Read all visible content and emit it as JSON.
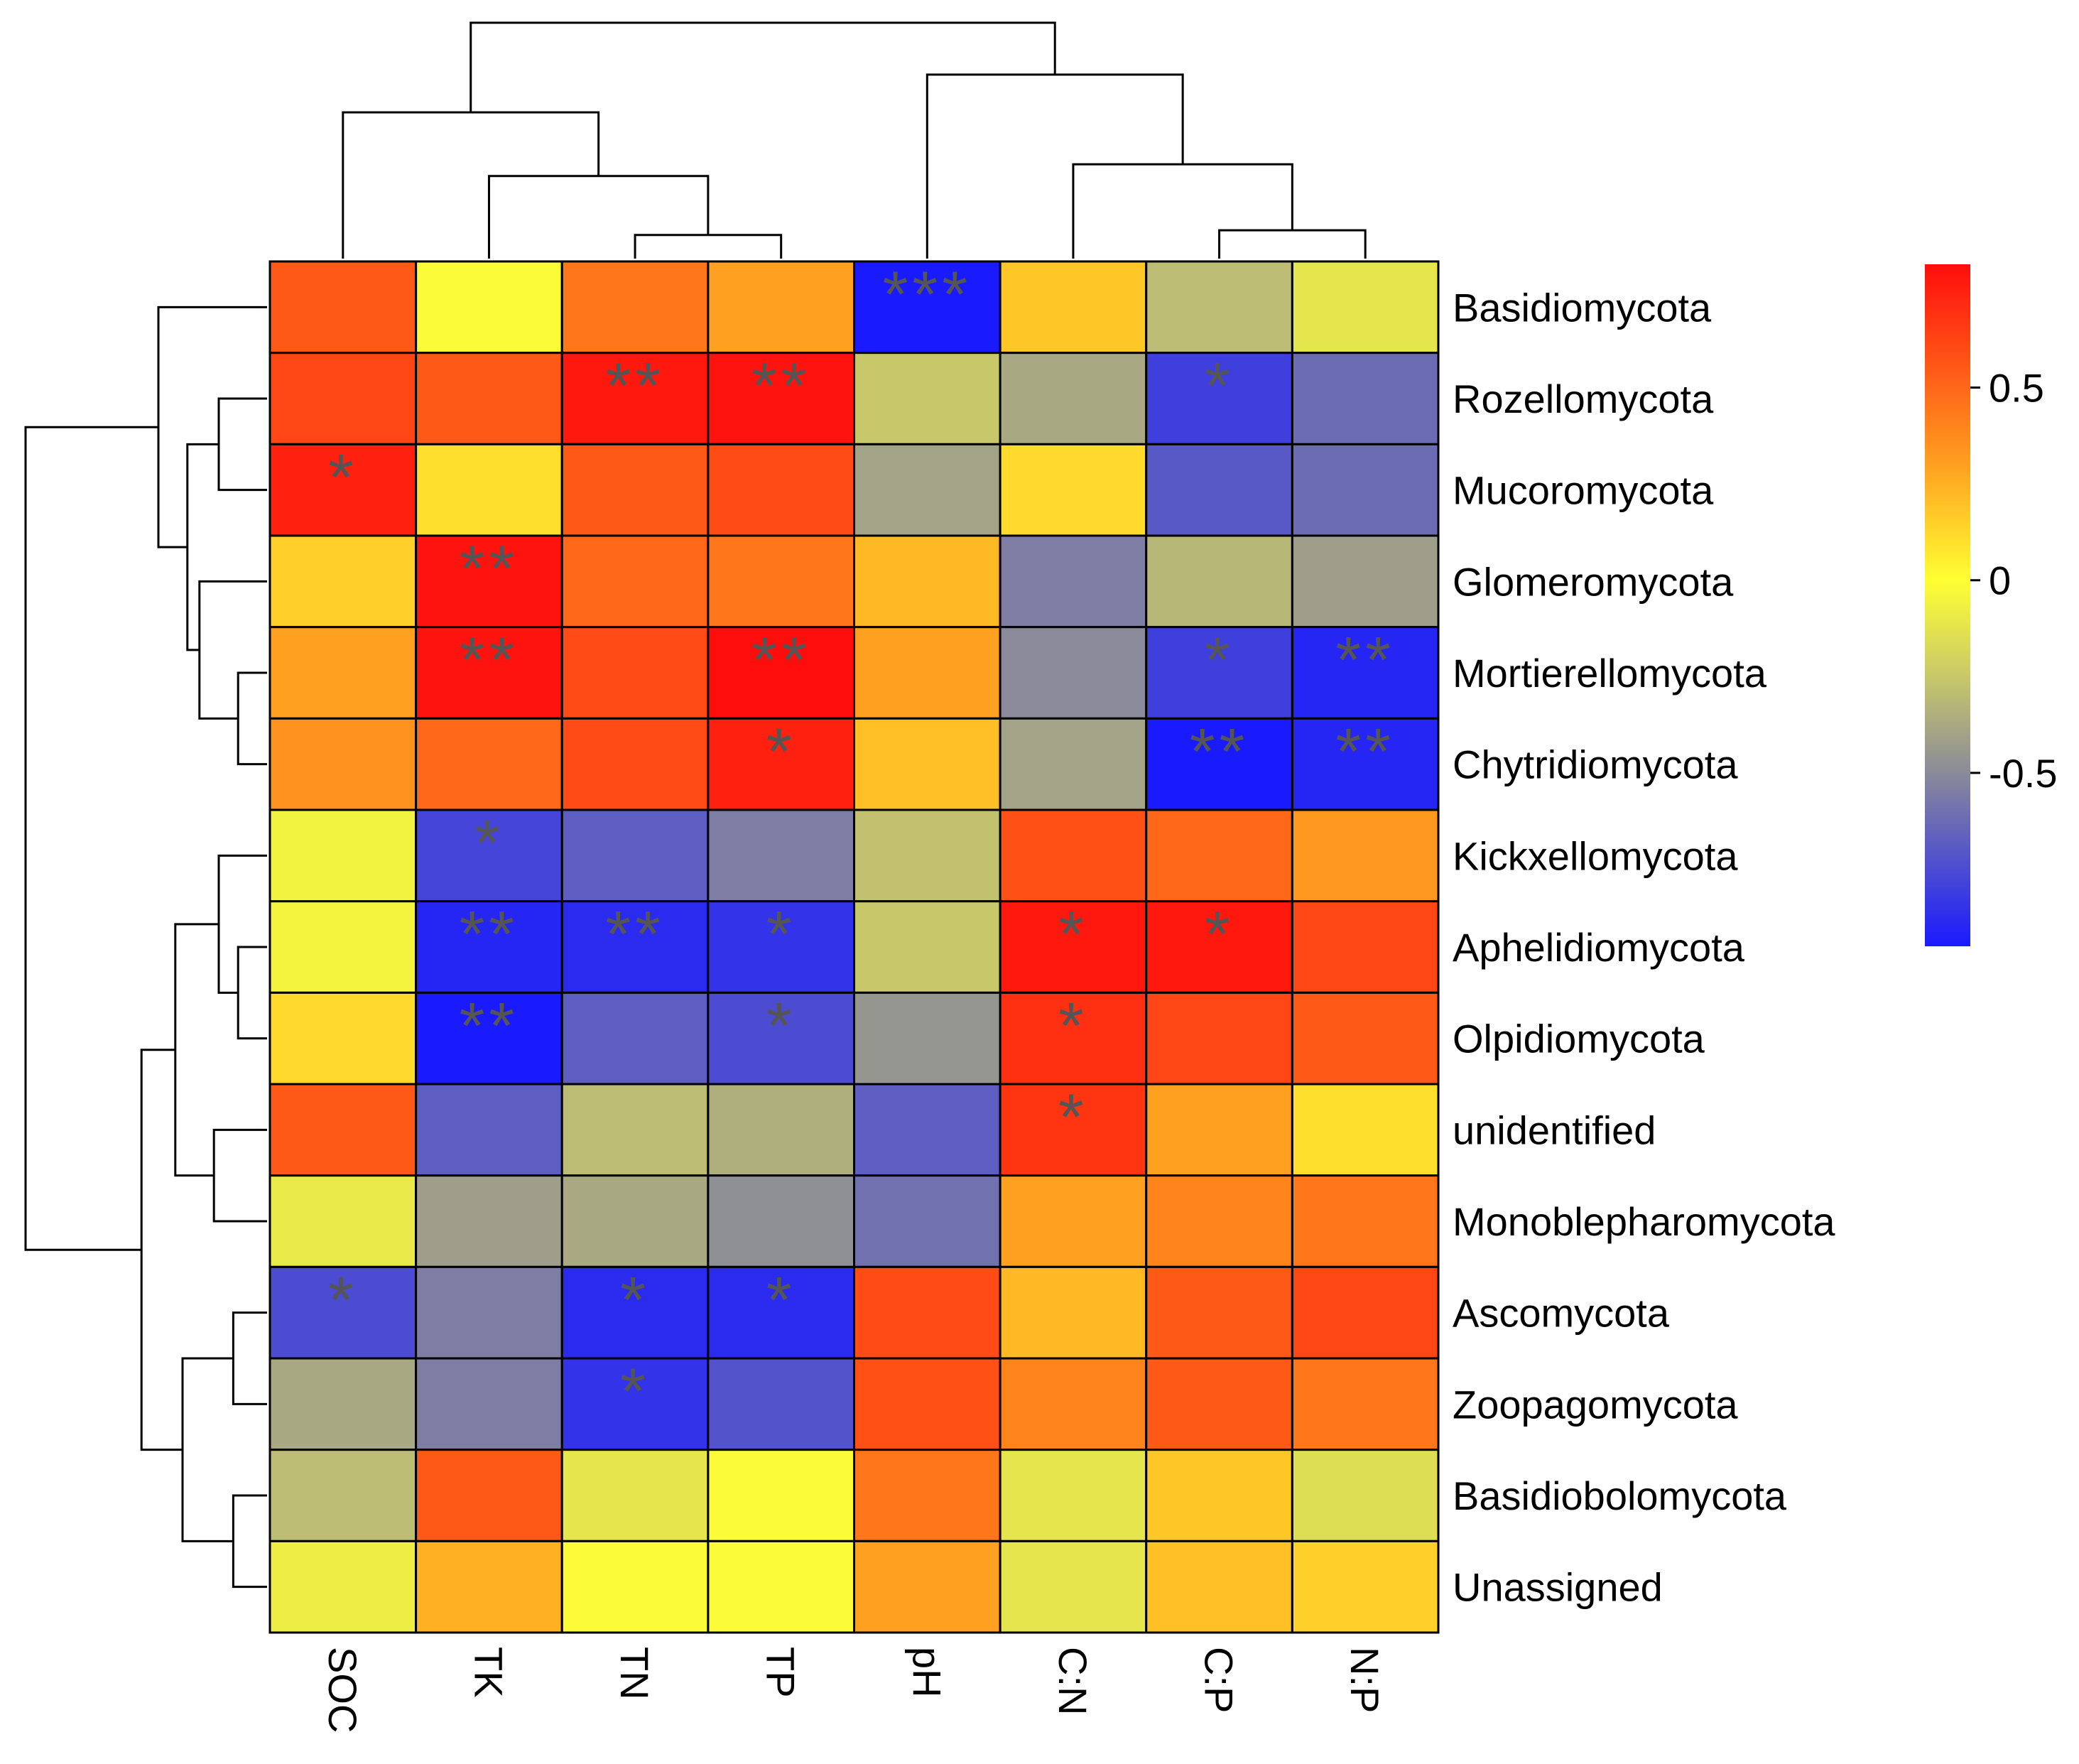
{
  "chart_data": {
    "type": "heatmap",
    "title": "",
    "columns": [
      "SOC",
      "TK",
      "TN",
      "TP",
      "pH",
      "C:N",
      "C:P",
      "N:P"
    ],
    "rows": [
      "Basidiomycota",
      "Rozellomycota",
      "Mucoromycota",
      "Glomeromycota",
      "Mortierellomycota",
      "Chytridiomycota",
      "Kickxellomycota",
      "Aphelidiomycota",
      "Olpidiomycota",
      "unidentified",
      "Monoblepharomycota",
      "Ascomycota",
      "Zoopagomycota",
      "Basidiobolomycota",
      "Unassigned"
    ],
    "values": [
      [
        0.55,
        -0.02,
        0.45,
        0.3,
        -0.95,
        0.18,
        -0.3,
        -0.12
      ],
      [
        0.62,
        0.55,
        0.78,
        0.8,
        -0.25,
        -0.38,
        -0.8,
        -0.62
      ],
      [
        0.75,
        0.1,
        0.55,
        0.6,
        -0.4,
        0.12,
        -0.7,
        -0.62
      ],
      [
        0.15,
        0.8,
        0.5,
        0.45,
        0.22,
        -0.55,
        -0.32,
        -0.42
      ],
      [
        0.3,
        0.8,
        0.6,
        0.82,
        0.3,
        -0.5,
        -0.8,
        -0.9
      ],
      [
        0.35,
        0.5,
        0.6,
        0.75,
        0.2,
        -0.4,
        -0.95,
        -0.9
      ],
      [
        -0.06,
        -0.78,
        -0.68,
        -0.55,
        -0.28,
        0.58,
        0.5,
        0.33
      ],
      [
        -0.05,
        -0.9,
        -0.88,
        -0.85,
        -0.25,
        0.78,
        0.78,
        0.62
      ],
      [
        0.12,
        -0.95,
        -0.68,
        -0.75,
        -0.45,
        0.7,
        0.62,
        0.55
      ],
      [
        0.55,
        -0.68,
        -0.3,
        -0.35,
        -0.68,
        0.68,
        0.3,
        0.1
      ],
      [
        -0.1,
        -0.42,
        -0.38,
        -0.48,
        -0.6,
        0.3,
        0.4,
        0.45
      ],
      [
        -0.75,
        -0.55,
        -0.88,
        -0.88,
        0.6,
        0.22,
        0.55,
        0.62
      ],
      [
        -0.38,
        -0.55,
        -0.85,
        -0.72,
        0.58,
        0.4,
        0.55,
        0.45
      ],
      [
        -0.3,
        0.55,
        -0.12,
        -0.02,
        0.45,
        -0.12,
        0.18,
        -0.15
      ],
      [
        -0.08,
        0.25,
        -0.02,
        -0.02,
        0.3,
        -0.12,
        0.2,
        0.15
      ]
    ],
    "significance": [
      [
        "",
        "",
        "",
        "",
        "***",
        "",
        "",
        ""
      ],
      [
        "",
        "",
        "**",
        "**",
        "",
        "",
        "*",
        ""
      ],
      [
        "*",
        "",
        "",
        "",
        "",
        "",
        "",
        ""
      ],
      [
        "",
        "**",
        "",
        "",
        "",
        "",
        "",
        ""
      ],
      [
        "",
        "**",
        "",
        "**",
        "",
        "",
        "*",
        "**"
      ],
      [
        "",
        "",
        "",
        "*",
        "",
        "",
        "**",
        "**"
      ],
      [
        "",
        "*",
        "",
        "",
        "",
        "",
        "",
        ""
      ],
      [
        "",
        "**",
        "**",
        "*",
        "",
        "*",
        "*",
        ""
      ],
      [
        "",
        "**",
        "",
        "*",
        "",
        "*",
        "",
        ""
      ],
      [
        "",
        "",
        "",
        "",
        "",
        "*",
        "",
        ""
      ],
      [
        "",
        "",
        "",
        "",
        "",
        "",
        "",
        ""
      ],
      [
        "*",
        "",
        "*",
        "*",
        "",
        "",
        "",
        ""
      ],
      [
        "",
        "",
        "*",
        "",
        "",
        "",
        "",
        ""
      ],
      [
        "",
        "",
        "",
        "",
        "",
        "",
        "",
        ""
      ],
      [
        "",
        "",
        "",
        "",
        "",
        "",
        "",
        ""
      ]
    ],
    "colorbar": {
      "min": -0.95,
      "max": 0.82,
      "ticks": [
        0.5,
        0,
        -0.5
      ],
      "tick_labels": [
        "0.5",
        "0",
        "-0.5"
      ],
      "stops": [
        {
          "value": -0.95,
          "color": "#1a1aff"
        },
        {
          "value": -0.5,
          "color": "#8a8a9a"
        },
        {
          "value": -0.25,
          "color": "#c8c86a"
        },
        {
          "value": 0.0,
          "color": "#ffff33"
        },
        {
          "value": 0.3,
          "color": "#ffa020"
        },
        {
          "value": 0.82,
          "color": "#ff0d0d"
        }
      ]
    },
    "column_dendrogram": {
      "order": [
        "SOC",
        "TK",
        "TN",
        "TP",
        "pH",
        "C:N",
        "C:P",
        "N:P"
      ],
      "merges": [
        [
          2,
          3,
          0.1
        ],
        [
          6,
          7,
          0.12
        ],
        [
          1,
          8,
          0.35
        ],
        [
          5,
          9,
          0.4
        ],
        [
          0,
          10,
          0.62
        ],
        [
          4,
          11,
          0.78
        ],
        [
          12,
          13,
          1.0
        ]
      ]
    },
    "row_dendrogram": {
      "order": [
        "Basidiomycota",
        "Rozellomycota",
        "Mucoromycota",
        "Glomeromycota",
        "Mortierellomycota",
        "Chytridiomycota",
        "Kickxellomycota",
        "Aphelidiomycota",
        "Olpidiomycota",
        "unidentified",
        "Monoblepharomycota",
        "Ascomycota",
        "Zoopagomycota",
        "Basidiobolomycota",
        "Unassigned"
      ],
      "merges": [
        [
          4,
          5,
          0.12
        ],
        [
          7,
          8,
          0.12
        ],
        [
          11,
          12,
          0.14
        ],
        [
          13,
          14,
          0.14
        ],
        [
          1,
          2,
          0.2
        ],
        [
          6,
          16,
          0.2
        ],
        [
          9,
          10,
          0.22
        ],
        [
          3,
          15,
          0.28
        ],
        [
          19,
          22,
          0.33
        ],
        [
          17,
          18,
          0.35
        ],
        [
          20,
          21,
          0.38
        ],
        [
          0,
          23,
          0.45
        ],
        [
          24,
          25,
          0.52
        ],
        [
          26,
          27,
          1.0
        ]
      ]
    }
  }
}
